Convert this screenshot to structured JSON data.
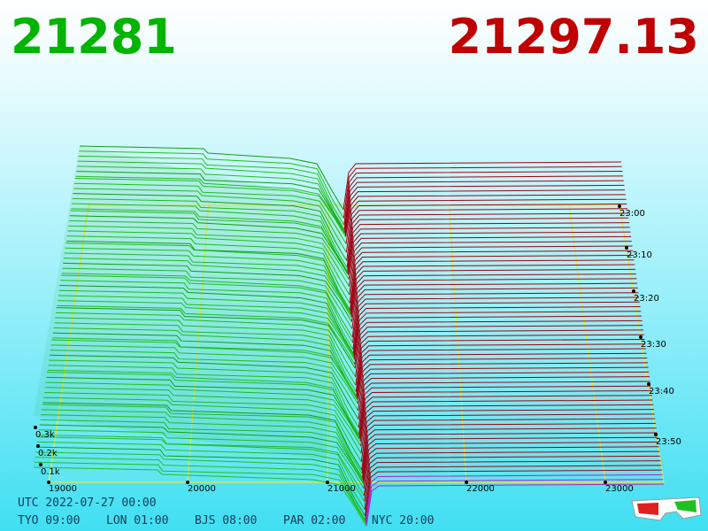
{
  "header": {
    "bid": "21281",
    "ask": "21297.13"
  },
  "axis": {
    "price_labels": [
      "19000",
      "20000",
      "21000",
      "22000",
      "23000"
    ],
    "time_labels": [
      "23:00",
      "23:10",
      "23:20",
      "23:30",
      "23:40",
      "23:50"
    ],
    "depth_labels": [
      "0.3k",
      "0.2k",
      "0.1k"
    ]
  },
  "footer": {
    "utc": "UTC 2022-07-27 00:00",
    "zones": [
      "TYO 09:00",
      "LON 01:00",
      "BJS 08:00",
      "PAR 02:00",
      "NYC 20:00"
    ]
  }
}
